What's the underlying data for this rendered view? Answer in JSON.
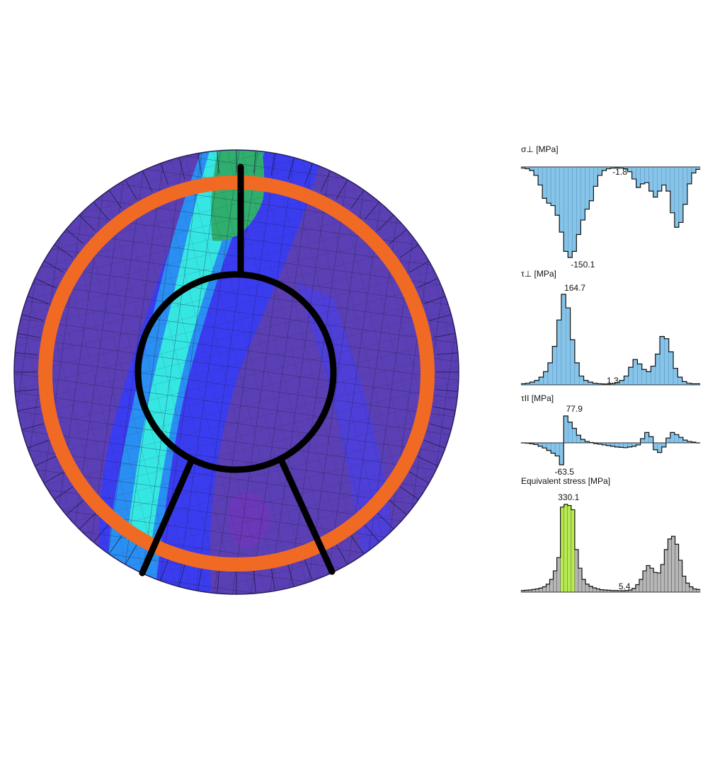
{
  "palette": {
    "ring": "#f06a24",
    "frame": "#000000",
    "fill_blue": "#86c4ea",
    "fill_gray": "#b7b7b7",
    "highlight": "#b8ec4e",
    "stress_low": "#5b3fb4",
    "stress_mid": "#3a3cf0",
    "stress_high": "#35e6e2",
    "stress_peak": "#2fae6d"
  },
  "chart_data": [
    {
      "type": "area",
      "title": "σ⊥ [MPa]",
      "series": [
        {
          "values": [
            -2,
            -3,
            -6,
            -14,
            -30,
            -52,
            -60,
            -64,
            -80,
            -108,
            -140,
            -150.1,
            -140,
            -112,
            -88,
            -70,
            -56,
            -32,
            -14,
            -6,
            -3,
            -2,
            -1.8,
            -2,
            -3,
            -8,
            -20,
            -34,
            -28,
            -26,
            -40,
            -50,
            -40,
            -30,
            -40,
            -76,
            -100,
            -92,
            -62,
            -28,
            -10,
            -4
          ]
        }
      ],
      "max_label": "-1.8",
      "min_label": "-150.1",
      "ylim": [
        -150.1,
        0
      ]
    },
    {
      "type": "area",
      "title": "τ⊥ [MPa]",
      "series": [
        {
          "values": [
            2,
            3,
            5,
            8,
            14,
            24,
            40,
            70,
            118,
            164.7,
            140,
            82,
            40,
            16,
            8,
            5,
            3,
            2,
            1.6,
            1.3,
            2,
            4,
            8,
            16,
            32,
            46,
            38,
            28,
            24,
            34,
            56,
            88,
            84,
            60,
            30,
            14,
            6,
            3,
            2,
            2
          ]
        }
      ],
      "max_label": "164.7",
      "min_label": "1.3",
      "ylim": [
        0,
        164.7
      ]
    },
    {
      "type": "area",
      "title": "τII [MPa]",
      "series": [
        {
          "values": [
            0,
            -1,
            -3,
            -5,
            -10,
            -15,
            -22,
            -30,
            -38,
            -63.5,
            77.9,
            60,
            42,
            22,
            10,
            4,
            1,
            -2,
            -4,
            -6,
            -8,
            -10,
            -12,
            -13,
            -14,
            -12,
            -10,
            -6,
            12,
            30,
            18,
            -20,
            -28,
            -12,
            14,
            30,
            24,
            16,
            8,
            4,
            2,
            0
          ]
        }
      ],
      "max_label": "77.9",
      "min_label": "-63.5",
      "ylim": [
        -63.5,
        77.9
      ]
    },
    {
      "type": "bar",
      "title": "Equivalent stress [MPa]",
      "series": [
        {
          "values": [
            6,
            7,
            8,
            10,
            12,
            15,
            20,
            30,
            48,
            80,
            130,
            320,
            330.1,
            326,
            310,
            160,
            90,
            48,
            30,
            22,
            16,
            12,
            9,
            8,
            7,
            6,
            6,
            5.5,
            5.4,
            6,
            8,
            14,
            28,
            48,
            80,
            100,
            90,
            74,
            72,
            104,
            160,
            200,
            210,
            180,
            120,
            60,
            34,
            20,
            12,
            10
          ]
        }
      ],
      "highlight_range": [
        11,
        14
      ],
      "max_label": "330.1",
      "min_label": "5.4",
      "ylim": [
        0,
        330.1
      ]
    }
  ]
}
